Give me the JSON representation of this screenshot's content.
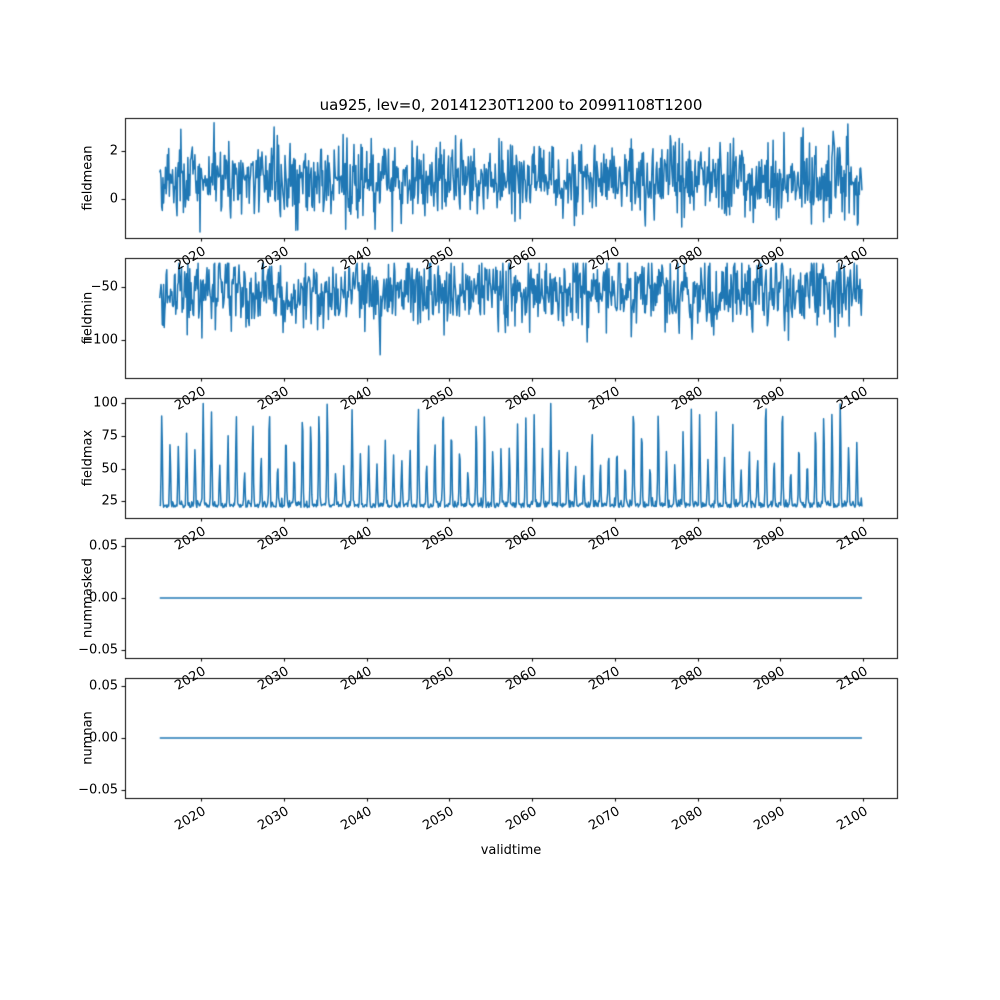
{
  "chart_data": {
    "type": "line",
    "title": "ua925, lev=0, 20141230T1200 to 20991108T1200",
    "xlabel": "validtime",
    "line_color": "#1f77b4",
    "axis_color": "#000000",
    "x_axis": {
      "ticks": [
        2020,
        2030,
        2040,
        2050,
        2060,
        2070,
        2080,
        2090,
        2100
      ],
      "lim": [
        2010.8,
        2104.1
      ],
      "data_range": [
        2015.0,
        2099.86
      ]
    },
    "subplots": [
      {
        "ylabel": "fieldmean",
        "ylim": [
          -1.6,
          3.35
        ],
        "yticks": [
          0,
          2
        ],
        "ytick_labels": [
          "0",
          "2"
        ],
        "synth": {
          "kind": "noise",
          "mean": 0.8,
          "std": 0.78,
          "min": -1.35,
          "max": 3.15,
          "n": 1100,
          "seed": 42
        }
      },
      {
        "ylabel": "fieldmin",
        "ylim": [
          -136,
          -22
        ],
        "yticks": [
          -100,
          -50
        ],
        "ytick_labels": [
          "−100",
          "−50"
        ],
        "synth": {
          "kind": "noise_spiky_down",
          "mean": -52,
          "std": 16,
          "min": -131,
          "max": -27,
          "n": 1100,
          "seed": 1337,
          "spike_prob": 0.05,
          "spike_extra": 48
        }
      },
      {
        "ylabel": "fieldmax",
        "ylim": [
          12,
          104.2
        ],
        "yticks": [
          25,
          50,
          75,
          100
        ],
        "ytick_labels": [
          "25",
          "50",
          "75",
          "100"
        ],
        "synth": {
          "kind": "seasonal_peaks",
          "base": 20,
          "peak": 72,
          "min": 15,
          "max": 100,
          "n": 1100,
          "seed": 2024
        }
      },
      {
        "ylabel": "nummasked",
        "ylim": [
          -0.0575,
          0.0575
        ],
        "yticks": [
          -0.05,
          0.0,
          0.05
        ],
        "ytick_labels": [
          "−0.05",
          "0.00",
          "0.05"
        ],
        "synth": {
          "kind": "constant",
          "value": 0
        }
      },
      {
        "ylabel": "numnan",
        "ylim": [
          -0.0575,
          0.0575
        ],
        "yticks": [
          -0.05,
          0.0,
          0.05
        ],
        "ytick_labels": [
          "−0.05",
          "0.00",
          "0.05"
        ],
        "synth": {
          "kind": "constant",
          "value": 0
        }
      }
    ]
  }
}
